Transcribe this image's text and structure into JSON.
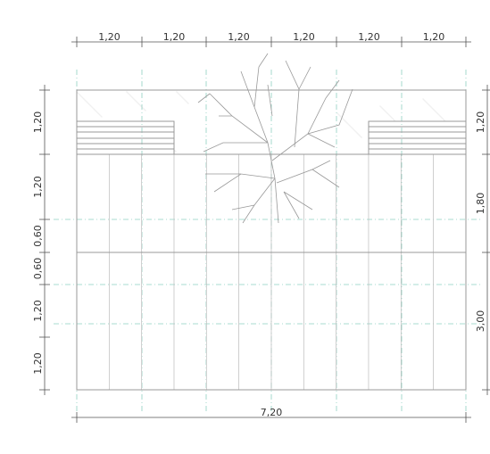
{
  "top_dimensions": [
    "1,20",
    "1,20",
    "1,20",
    "1,20",
    "1,20",
    "1,20"
  ],
  "left_dimensions": [
    "1,20",
    "1,20",
    "0,60",
    "0,60",
    "1,20",
    "1,20"
  ],
  "right_dimensions": [
    "1,20",
    "1,80",
    "3,00"
  ],
  "bottom_dimension": "7,20"
}
